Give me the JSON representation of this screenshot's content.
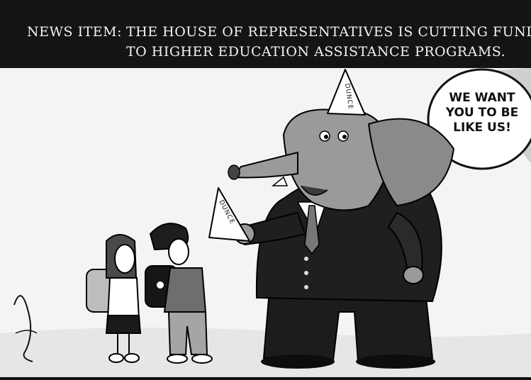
{
  "caption": {
    "label": "NEWS ITEM:",
    "line1": "THE HOUSE OF REPRESENTATIVES IS CUTTING FUNDS",
    "line2": "TO HIGHER EDUCATION ASSISTANCE PROGRAMS."
  },
  "speech_bubble": {
    "line1": "WE WANT",
    "line2": "YOU TO BE",
    "line3": "LIKE US!"
  },
  "hat_labels": {
    "elephant_hat": "DUNCE",
    "handed_hat": "DUNCE"
  },
  "colors": {
    "caption_bg": "#141414",
    "ink": "#111111",
    "elephant_gray": "#9a9a9a",
    "suit": "#1c1c1c",
    "paper": "#f4f4f4"
  }
}
